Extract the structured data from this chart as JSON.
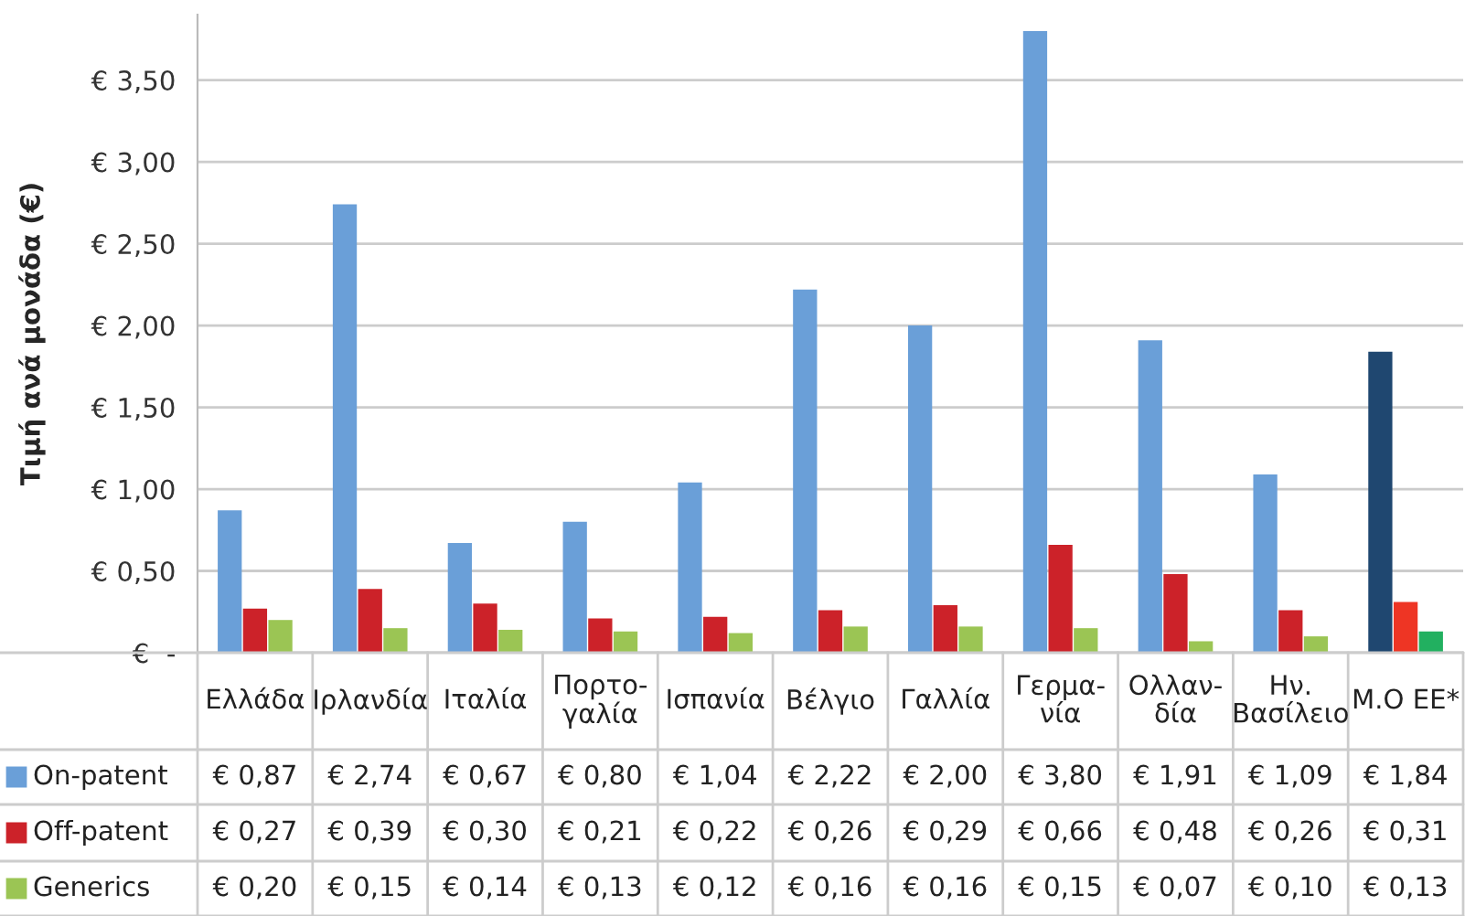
{
  "chart_data": {
    "type": "bar",
    "ylabel": "Τιμή ανά μονάδα (€)",
    "categories": [
      "Ελλάδα",
      "Ιρλανδία",
      "Ιταλία",
      "Πορτο-\nγαλία",
      "Ισπανία",
      "Βέλγιο",
      "Γαλλία",
      "Γερμα-\nνία",
      "Ολλαν-\nδία",
      "Ην.\nΒασίλειο",
      "Μ.Ο ΕΕ*"
    ],
    "series": [
      {
        "name": "On-patent",
        "color": "#6a9fd8",
        "colors": [
          "#6a9fd8",
          "#6a9fd8",
          "#6a9fd8",
          "#6a9fd8",
          "#6a9fd8",
          "#6a9fd8",
          "#6a9fd8",
          "#6a9fd8",
          "#6a9fd8",
          "#6a9fd8",
          "#1f4770"
        ],
        "values": [
          0.87,
          2.74,
          0.67,
          0.8,
          1.04,
          2.22,
          2.0,
          3.8,
          1.91,
          1.09,
          1.84
        ],
        "value_labels": [
          "€ 0,87",
          "€ 2,74",
          "€ 0,67",
          "€ 0,80",
          "€ 1,04",
          "€ 2,22",
          "€ 2,00",
          "€ 3,80",
          "€ 1,91",
          "€ 1,09",
          "€ 1,84"
        ]
      },
      {
        "name": "Off-patent",
        "color": "#cc2229",
        "colors": [
          "#cc2229",
          "#cc2229",
          "#cc2229",
          "#cc2229",
          "#cc2229",
          "#cc2229",
          "#cc2229",
          "#cc2229",
          "#cc2229",
          "#cc2229",
          "#ee3524"
        ],
        "values": [
          0.27,
          0.39,
          0.3,
          0.21,
          0.22,
          0.26,
          0.29,
          0.66,
          0.48,
          0.26,
          0.31
        ],
        "value_labels": [
          "€ 0,27",
          "€ 0,39",
          "€ 0,30",
          "€ 0,21",
          "€ 0,22",
          "€ 0,26",
          "€ 0,29",
          "€ 0,66",
          "€ 0,48",
          "€ 0,26",
          "€ 0,31"
        ]
      },
      {
        "name": "Generics",
        "color": "#9bc554",
        "colors": [
          "#9bc554",
          "#9bc554",
          "#9bc554",
          "#9bc554",
          "#9bc554",
          "#9bc554",
          "#9bc554",
          "#9bc554",
          "#9bc554",
          "#9bc554",
          "#22b060"
        ],
        "values": [
          0.2,
          0.15,
          0.14,
          0.13,
          0.12,
          0.16,
          0.16,
          0.15,
          0.07,
          0.1,
          0.13
        ],
        "value_labels": [
          "€ 0,20",
          "€ 0,15",
          "€ 0,14",
          "€ 0,13",
          "€ 0,12",
          "€ 0,16",
          "€ 0,16",
          "€ 0,15",
          "€ 0,07",
          "€ 0,10",
          "€ 0,13"
        ]
      }
    ],
    "ylim": [
      0,
      3.9
    ],
    "yticks": [
      {
        "value": 0,
        "label": "€  -"
      },
      {
        "value": 0.5,
        "label": "€ 0,50"
      },
      {
        "value": 1.0,
        "label": "€ 1,00"
      },
      {
        "value": 1.5,
        "label": "€ 1,50"
      },
      {
        "value": 2.0,
        "label": "€ 2,00"
      },
      {
        "value": 2.5,
        "label": "€ 2,50"
      },
      {
        "value": 3.0,
        "label": "€ 3,00"
      },
      {
        "value": 3.5,
        "label": "€ 3,50"
      }
    ],
    "grid": "y",
    "legend": "bottom left"
  }
}
